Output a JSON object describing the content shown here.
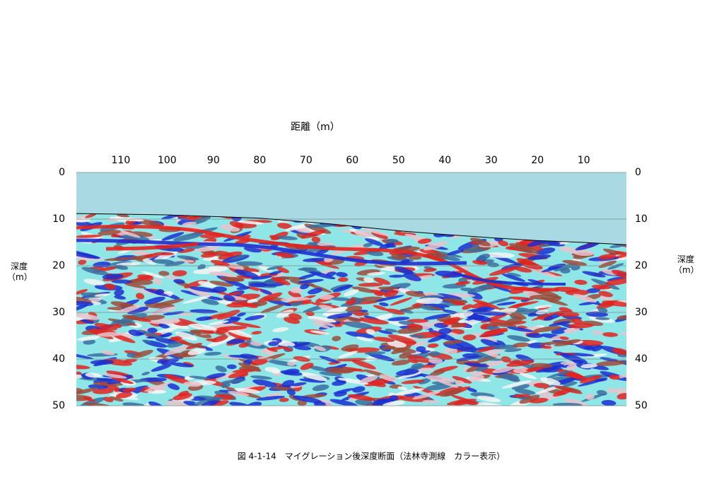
{
  "chart_data": {
    "type": "depth-section",
    "title": "図 4-1-14　マイグレーション後深度断面（法林寺測線　カラー表示）",
    "x_label": "距離（m）",
    "y_label": "深度（m）",
    "xlim": [
      119.6,
      0.8
    ],
    "xticks": [
      110,
      100,
      90,
      80,
      70,
      60,
      50,
      40,
      30,
      20,
      10
    ],
    "ylim": [
      0,
      50
    ],
    "yticks": [
      0,
      10,
      20,
      30,
      40,
      50
    ],
    "grid": true,
    "sky_color": "#a9d9e3",
    "ground_color": "#8fe6e6",
    "series": [
      {
        "name": "surface",
        "color": "#000000",
        "x": [
          119.6,
          100,
          80,
          65,
          50,
          40,
          30,
          20,
          10,
          0.8
        ],
        "values": [
          8.8,
          9.1,
          9.8,
          11.0,
          12.5,
          13.3,
          14.0,
          14.6,
          15.0,
          15.5
        ]
      }
    ]
  }
}
